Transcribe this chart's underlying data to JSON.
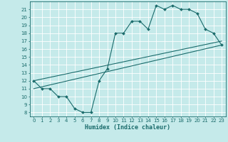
{
  "xlabel": "Humidex (Indice chaleur)",
  "bg_color": "#c5eaea",
  "grid_color": "#ffffff",
  "line_color": "#1a6b6b",
  "xlim": [
    -0.5,
    23.5
  ],
  "ylim": [
    7.5,
    22.0
  ],
  "yticks": [
    8,
    9,
    10,
    11,
    12,
    13,
    14,
    15,
    16,
    17,
    18,
    19,
    20,
    21
  ],
  "xticks": [
    0,
    1,
    2,
    3,
    4,
    5,
    6,
    7,
    8,
    9,
    10,
    11,
    12,
    13,
    14,
    15,
    16,
    17,
    18,
    19,
    20,
    21,
    22,
    23
  ],
  "line1_x": [
    0,
    1,
    2,
    3,
    4,
    5,
    6,
    7,
    8,
    9,
    10,
    11,
    12,
    13,
    14,
    15,
    16,
    17,
    18,
    19,
    20,
    21,
    22,
    23
  ],
  "line1_y": [
    12.0,
    11.0,
    11.0,
    10.0,
    10.0,
    8.5,
    8.0,
    8.0,
    12.0,
    13.5,
    18.0,
    18.0,
    19.5,
    19.5,
    18.5,
    21.5,
    21.0,
    21.5,
    21.0,
    21.0,
    20.5,
    18.5,
    18.0,
    16.5
  ],
  "line2_x": [
    0,
    23
  ],
  "line2_y": [
    11.0,
    16.5
  ],
  "line3_x": [
    0,
    23
  ],
  "line3_y": [
    12.0,
    17.0
  ],
  "xlabel_fontsize": 6.0,
  "tick_fontsize": 5.0,
  "marker_size": 2.0,
  "line_width": 0.8
}
